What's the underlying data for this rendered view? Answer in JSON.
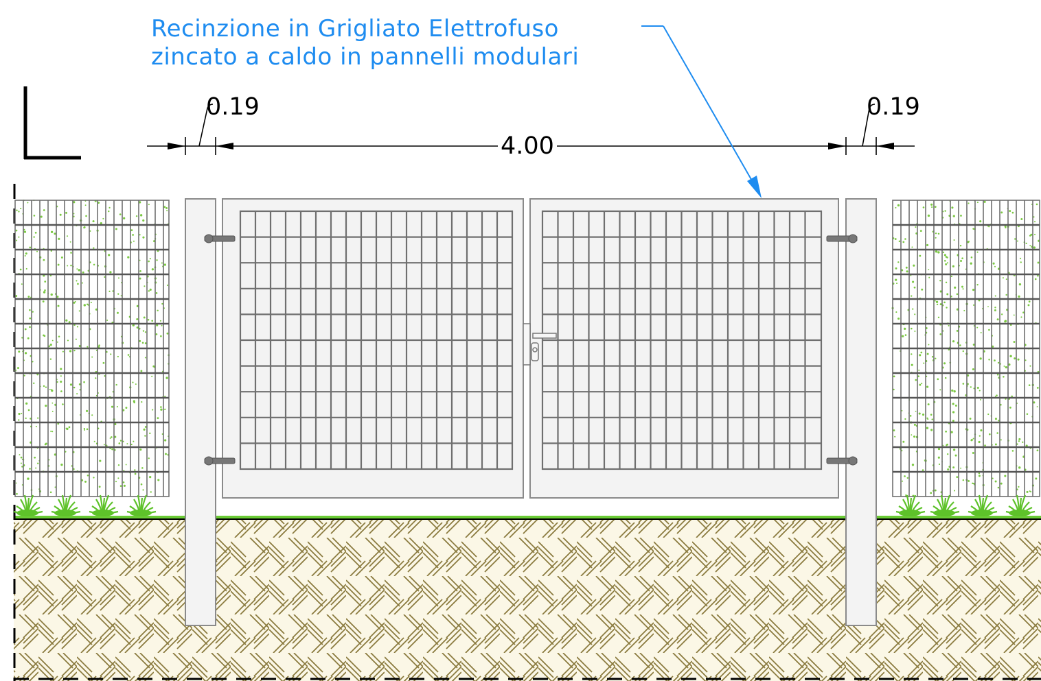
{
  "callout": {
    "line1": "Recinzione in Grigliato Elettrofuso",
    "line2": "zincato a caldo in pannelli modulari",
    "color": "#1e8cf0"
  },
  "dimensions": {
    "left_post": "0.19",
    "gate_width": "4.00",
    "right_post": "0.19"
  },
  "colors": {
    "grating": "#6f6f6f",
    "frame_fill": "#f3f3f3",
    "frame_stroke": "#8a8a8a",
    "grass": "#6acb35",
    "soil_hatch": "#8a7a3e",
    "soil_fill": "#fbf7e6",
    "ink": "#000000"
  }
}
